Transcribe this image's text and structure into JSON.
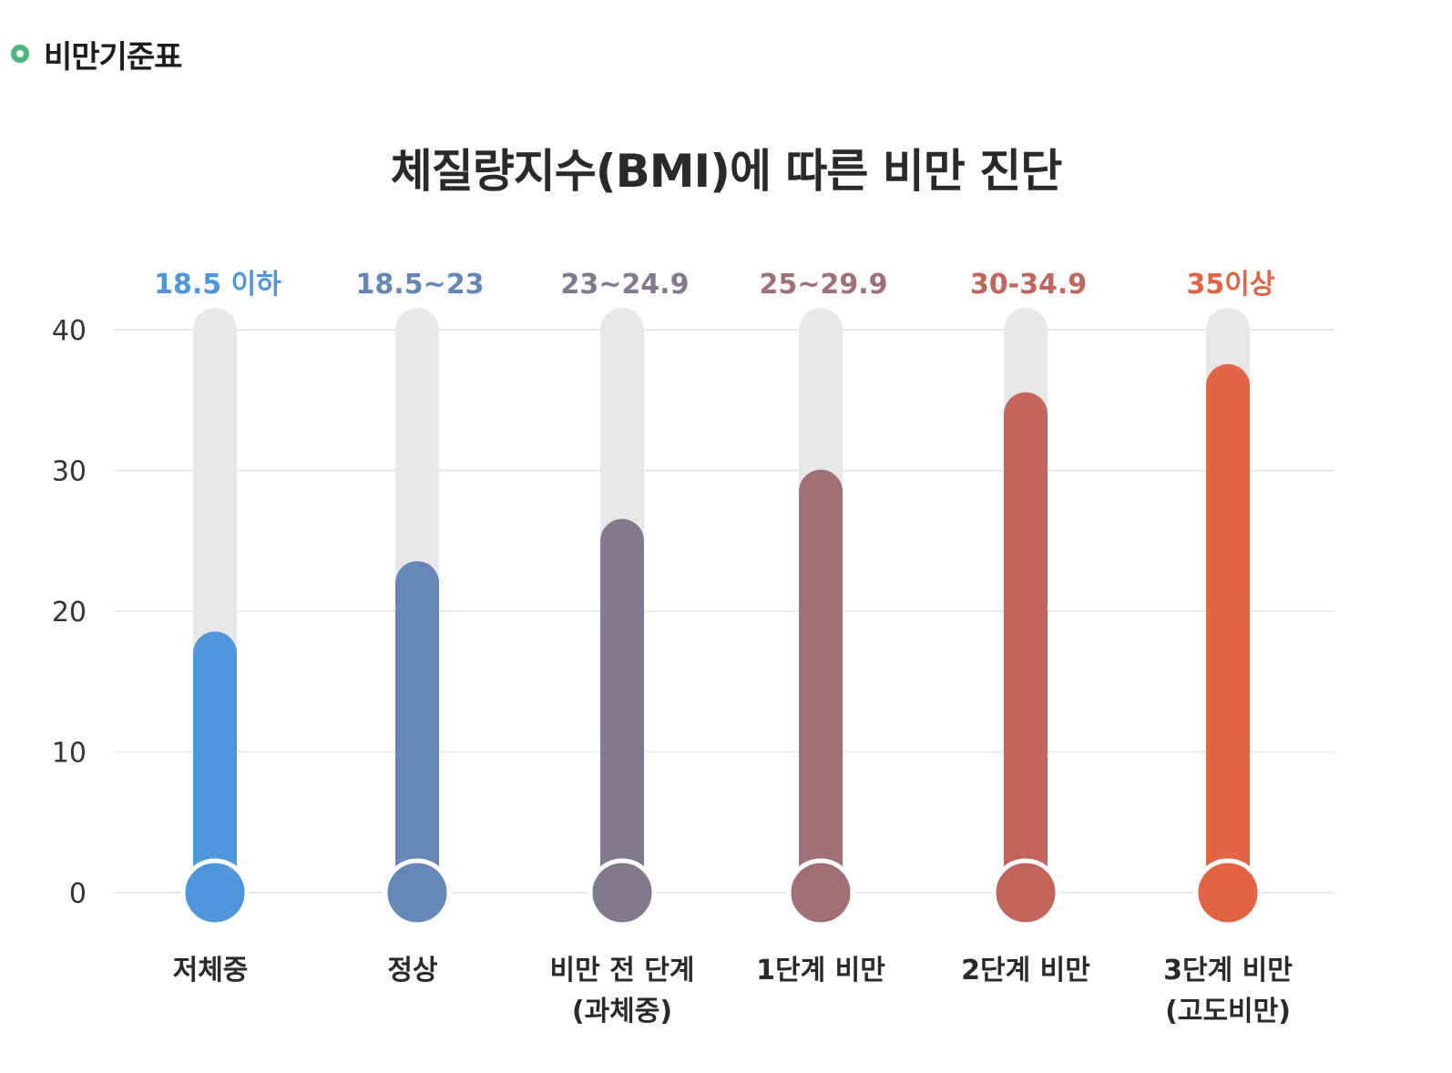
{
  "header": {
    "title": "비만기준표",
    "icon": "ring-icon",
    "icon_color": "#4cb97a"
  },
  "chart_data": {
    "type": "bar",
    "title": "체질량지수(BMI)에 따른 비만 진단",
    "ylim": [
      0,
      40
    ],
    "yticks": [
      "0",
      "10",
      "20",
      "30",
      "40"
    ],
    "grid": true,
    "track_color": "#e8e8e8",
    "categories": [
      {
        "label_lines": [
          "저체중"
        ],
        "range": "18.5 이하",
        "value": 17,
        "color": "#4f96db"
      },
      {
        "label_lines": [
          "정상"
        ],
        "range": "18.5~23",
        "value": 22,
        "color": "#6587b8"
      },
      {
        "label_lines": [
          "비만 전 단계",
          "(과체중)"
        ],
        "range": "23~24.9",
        "value": 25,
        "color": "#82798f"
      },
      {
        "label_lines": [
          "1단계 비만"
        ],
        "range": "25~29.9",
        "value": 28.5,
        "color": "#a07075"
      },
      {
        "label_lines": [
          "2단계 비만"
        ],
        "range": "30-34.9",
        "value": 34,
        "color": "#c2655a"
      },
      {
        "label_lines": [
          "3단계 비만",
          "(고도비만)"
        ],
        "range": "35이상",
        "value": 36,
        "color": "#e36444"
      }
    ]
  }
}
